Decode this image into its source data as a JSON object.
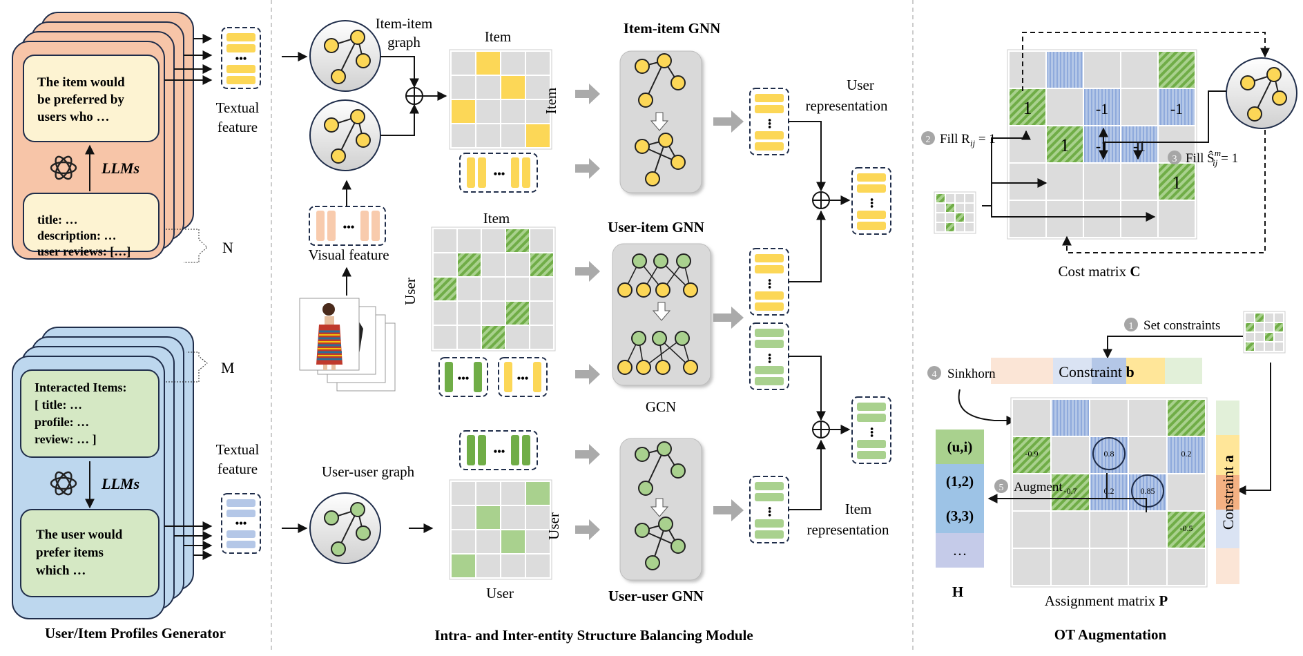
{
  "colors": {
    "item_card": "#f7c5a8",
    "item_inner": "#fdf3d2",
    "user_card": "#bdd7ee",
    "user_inner": "#d5e8c4",
    "yellow": "#fcd757",
    "green": "#a9d18e",
    "blue": "#b4c7e7",
    "cell": "#dcdcdc"
  },
  "generator": {
    "item_prompt": [
      "The item would",
      "be preferred by",
      "users who …"
    ],
    "item_llm": "LLMs",
    "item_input": [
      "title: …",
      "description: …",
      "user reviews: […]"
    ],
    "item_count": "N",
    "user_count": "M",
    "user_input": [
      "Interacted Items:",
      "[ title: …",
      "  profile: …",
      "  review: … ]"
    ],
    "user_llm": "LLMs",
    "user_prompt": [
      "The user would",
      "prefer items",
      "which …"
    ],
    "textual_feature_top": [
      "Textual",
      "feature"
    ],
    "textual_feature_bottom": [
      "Textual",
      "feature"
    ],
    "caption": "User/Item Profiles Generator"
  },
  "balancing": {
    "item_item_graph": [
      "Item-item",
      "graph"
    ],
    "visual_feature": "Visual feature",
    "item_matrix_top": "Item",
    "item_matrix_side": "Item",
    "item_item_gnn": "Item-item GNN",
    "user_item_top": "Item",
    "user_item_side": "User",
    "user_item_gnn": "User-item GNN",
    "gcn": "GCN",
    "user_user_graph": "User-user graph",
    "user_user_side": "User",
    "user_user_bottom": "User",
    "user_user_gnn": "User-user GNN",
    "user_representation": [
      "User",
      "representation"
    ],
    "item_representation": [
      "Item",
      "representation"
    ],
    "caption": "Intra- and Inter-entity Structure Balancing Module"
  },
  "ot": {
    "cost_values": [
      "1",
      "-1",
      "-1",
      "1",
      "-1",
      "-1",
      "1"
    ],
    "step2_num": "2",
    "step2_text": "Fill R",
    "step2_sub": "ij",
    "step2_tail": " = 1",
    "step3_num": "3",
    "step3_text": "Fill Ŝ",
    "step3_sup": "m",
    "step3_sub": "ij",
    "step3_tail": " = 1",
    "cost_caption": "Cost matrix ",
    "cost_caption_bold": "C",
    "step1_num": "1",
    "step1_text": "Set constraints",
    "step4_num": "4",
    "step4_text": "Sinkhorn",
    "constraint_b": "Constraint ",
    "constraint_b_bold": "b",
    "constraint_a": "Constraint ",
    "constraint_a_bold": "a",
    "h_items": [
      "(u,i)",
      "(1,2)",
      "(3,3)",
      "…"
    ],
    "h_label": "H",
    "step5_num": "5",
    "step5_text": "Augment",
    "assign_values": [
      "-0.9",
      "0.8",
      "0.2",
      "-0.7",
      "0.2",
      "0.85",
      "-0.5"
    ],
    "assign_caption": "Assignment matrix ",
    "assign_caption_bold": "P",
    "caption": "OT Augmentation"
  }
}
